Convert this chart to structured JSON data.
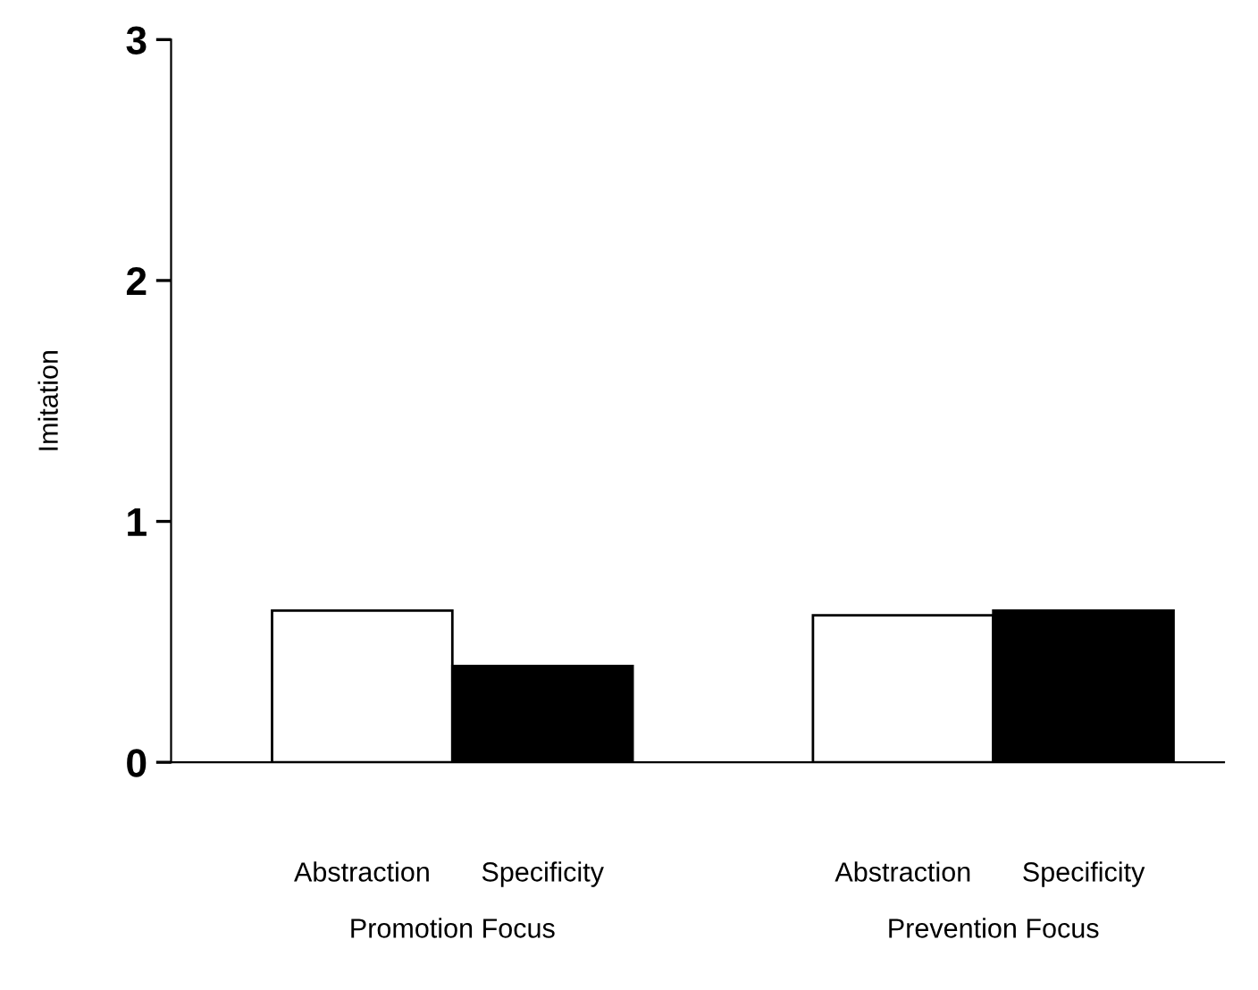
{
  "chart_data": {
    "type": "bar",
    "ylabel": "Imitation",
    "categories": [
      "Abstraction",
      "Specificity",
      null,
      "Abstraction",
      "Specificity"
    ],
    "values": [
      0.63,
      0.4,
      null,
      0.61,
      0.63
    ],
    "colors": [
      "#ffffff",
      "#000000",
      "#ffffff",
      "#ffffff",
      "#000000"
    ],
    "annotations": [
      "Promotion Focus",
      "Prevention Focus"
    ],
    "ylim": [
      0,
      3
    ],
    "yticks": [
      0,
      1,
      2,
      3
    ],
    "grid": false
  }
}
